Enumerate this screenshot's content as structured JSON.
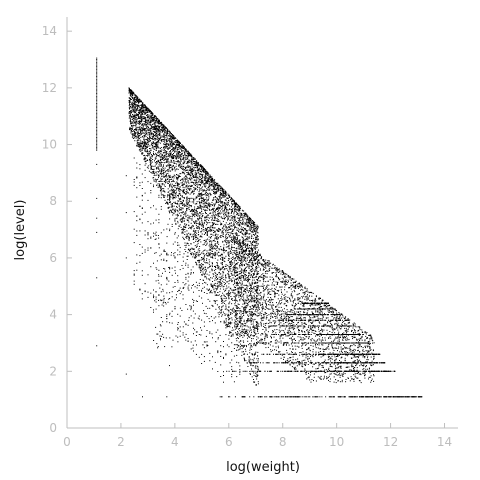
{
  "chart_data": {
    "type": "scatter",
    "title": "",
    "xlabel": "log(weight)",
    "ylabel": "log(level)",
    "xlim": [
      0,
      14.5
    ],
    "ylim": [
      0,
      14.5
    ],
    "xticks": [
      0,
      2,
      4,
      6,
      8,
      10,
      12,
      14
    ],
    "yticks": [
      0,
      2,
      4,
      6,
      8,
      10,
      12,
      14
    ],
    "grid": false,
    "colors": {
      "points": "#000000",
      "axis": "#bfbfbf",
      "ticks": "#bdbdbd",
      "labels": "#111111"
    },
    "features": {
      "bottom_line": {
        "x_start": 0.1,
        "x_end": 14.3,
        "y": 0.0
      },
      "lower_lines": [
        {
          "y": 1.1,
          "x_start": 5.4,
          "x_end": 13.2
        },
        {
          "y": 2.0,
          "x_start": 5.6,
          "x_end": 12.2
        },
        {
          "y": 2.3,
          "x_start": 5.8,
          "x_end": 11.8
        },
        {
          "y": 2.6,
          "x_start": 6.2,
          "x_end": 11.6
        },
        {
          "y": 3.0,
          "x_start": 6.6,
          "x_end": 11.2
        },
        {
          "y": 3.3,
          "x_start": 7.2,
          "x_end": 10.9
        }
      ],
      "vertical_line": {
        "x": 1.1,
        "y_start": 9.8,
        "y_end": 13.1
      },
      "scattered_column_points": [
        {
          "x": 1.1,
          "y": 2.9
        },
        {
          "x": 1.1,
          "y": 5.3
        },
        {
          "x": 1.1,
          "y": 6.9
        },
        {
          "x": 1.1,
          "y": 7.4
        },
        {
          "x": 1.1,
          "y": 8.1
        },
        {
          "x": 1.1,
          "y": 9.3
        },
        {
          "x": 2.2,
          "y": 1.9
        },
        {
          "x": 2.2,
          "y": 6.0
        },
        {
          "x": 2.2,
          "y": 7.6
        },
        {
          "x": 2.2,
          "y": 8.9
        },
        {
          "x": 2.3,
          "y": 11.9
        },
        {
          "x": 2.3,
          "y": 12.0
        },
        {
          "x": 2.8,
          "y": 1.1
        },
        {
          "x": 3.7,
          "y": 1.1
        },
        {
          "x": 3.8,
          "y": 2.2
        }
      ],
      "dense_wedge": {
        "x_from": 2.3,
        "y_from": 12.0,
        "x_to": 7.1,
        "y_to": 7.1
      },
      "sparse_wedge": {
        "x_from": 6.2,
        "y_from": 6.5,
        "x_to": 10.8,
        "y_to": 3.3
      },
      "random_seed": 20240611,
      "approx_point_count": 9000
    }
  }
}
